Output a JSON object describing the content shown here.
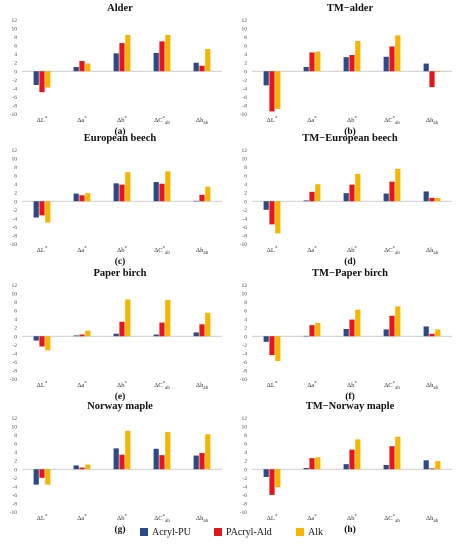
{
  "series_colors": [
    "#2e4a86",
    "#e8141c",
    "#f7b500"
  ],
  "legend": {
    "items": [
      {
        "name": "Acryl-PU",
        "color": "#2e4a86"
      },
      {
        "name": "PAcryl-Ald",
        "color": "#e8141c"
      },
      {
        "name": "Alk",
        "color": "#f7b500"
      }
    ]
  },
  "chart_data": [
    {
      "type": "bar",
      "title": "Alder",
      "letter": "(a)",
      "categories": [
        "ΔL*",
        "Δa*",
        "Δb*",
        "ΔC*ab",
        "Δhab"
      ],
      "series": [
        {
          "name": "Acryl-PU",
          "values": [
            -3.2,
            1.0,
            4.2,
            4.3,
            2.0
          ]
        },
        {
          "name": "PAcryl-Ald",
          "values": [
            -4.9,
            2.4,
            6.6,
            7.0,
            1.3
          ]
        },
        {
          "name": "Alk",
          "values": [
            -3.8,
            1.8,
            8.5,
            8.5,
            5.2
          ]
        }
      ],
      "yticks": [
        "12",
        "10",
        "8",
        "6",
        "4",
        "2",
        "0",
        "-2",
        "-4",
        "-6",
        "-8",
        "-10"
      ],
      "ylim": [
        -10,
        12
      ]
    },
    {
      "type": "bar",
      "title": "TM−alder",
      "letter": "(b)",
      "categories": [
        "ΔL*",
        "Δa*",
        "Δb*",
        "ΔC*ab",
        "Δhab"
      ],
      "series": [
        {
          "name": "Acryl-PU",
          "values": [
            -3.3,
            1.0,
            3.3,
            3.4,
            1.8
          ]
        },
        {
          "name": "PAcryl-Ald",
          "values": [
            -9.4,
            4.4,
            3.8,
            5.8,
            -3.7
          ]
        },
        {
          "name": "Alk",
          "values": [
            -8.8,
            4.6,
            7.1,
            8.4,
            -0.2
          ]
        }
      ],
      "yticks": [
        "12",
        "10",
        "8",
        "6",
        "4",
        "2",
        "0",
        "-2",
        "-4",
        "-6",
        "-8",
        "-10"
      ],
      "ylim": [
        -10,
        12
      ]
    },
    {
      "type": "bar",
      "title": "European beech",
      "letter": "(c)",
      "categories": [
        "ΔL*",
        "Δa*",
        "Δb*",
        "ΔC*ab",
        "Δhab"
      ],
      "series": [
        {
          "name": "Acryl-PU",
          "values": [
            -3.8,
            1.8,
            4.2,
            4.5,
            0.1
          ]
        },
        {
          "name": "PAcryl-Ald",
          "values": [
            -3.3,
            1.4,
            3.9,
            4.1,
            1.5
          ]
        },
        {
          "name": "Alk",
          "values": [
            -5.0,
            1.9,
            6.8,
            7.0,
            3.4
          ]
        }
      ],
      "yticks": [
        "12",
        "10",
        "8",
        "6",
        "4",
        "2",
        "0",
        "-2",
        "-4",
        "-6",
        "-8",
        "-10"
      ],
      "ylim": [
        -10,
        12
      ]
    },
    {
      "type": "bar",
      "title": "TM−European beech",
      "letter": "(d)",
      "categories": [
        "ΔL*",
        "Δa*",
        "Δb*",
        "ΔC*ab",
        "Δhab"
      ],
      "series": [
        {
          "name": "Acryl-PU",
          "values": [
            -2.0,
            0.2,
            1.9,
            1.8,
            2.3
          ]
        },
        {
          "name": "PAcryl-Ald",
          "values": [
            -5.4,
            2.2,
            3.9,
            4.6,
            0.8
          ]
        },
        {
          "name": "Alk",
          "values": [
            -7.5,
            4.0,
            6.4,
            7.6,
            0.8
          ]
        }
      ],
      "yticks": [
        "12",
        "10",
        "8",
        "6",
        "4",
        "2",
        "0",
        "-2",
        "-4",
        "-6",
        "-8",
        "-10"
      ],
      "ylim": [
        -10,
        12
      ]
    },
    {
      "type": "bar",
      "title": "Paper birch",
      "letter": "(e)",
      "categories": [
        "ΔL*",
        "Δa*",
        "Δb*",
        "ΔC*ab",
        "Δhab"
      ],
      "series": [
        {
          "name": "Acryl-PU",
          "values": [
            -1.0,
            0.2,
            0.6,
            0.4,
            0.9
          ]
        },
        {
          "name": "PAcryl-Ald",
          "values": [
            -2.4,
            0.4,
            3.4,
            3.2,
            2.8
          ]
        },
        {
          "name": "Alk",
          "values": [
            -3.3,
            1.3,
            8.6,
            8.5,
            5.5
          ]
        }
      ],
      "yticks": [
        "12",
        "10",
        "8",
        "6",
        "4",
        "2",
        "0",
        "-2",
        "-4",
        "-6",
        "-8",
        "-10"
      ],
      "ylim": [
        -10,
        12
      ]
    },
    {
      "type": "bar",
      "title": "TM−Paper birch",
      "letter": "(f)",
      "categories": [
        "ΔL*",
        "Δa*",
        "Δb*",
        "ΔC*ab",
        "Δhab"
      ],
      "series": [
        {
          "name": "Acryl-PU",
          "values": [
            -1.3,
            0.1,
            1.7,
            1.6,
            2.3
          ]
        },
        {
          "name": "PAcryl-Ald",
          "values": [
            -4.4,
            2.6,
            3.9,
            4.8,
            0.6
          ]
        },
        {
          "name": "Alk",
          "values": [
            -5.8,
            3.1,
            6.2,
            7.0,
            1.6
          ]
        }
      ],
      "yticks": [
        "12",
        "10",
        "8",
        "6",
        "4",
        "2",
        "0",
        "-2",
        "-4",
        "-6",
        "-8",
        "-10"
      ],
      "ylim": [
        -10,
        12
      ]
    },
    {
      "type": "bar",
      "title": "Norway maple",
      "letter": "(g)",
      "categories": [
        "ΔL*",
        "Δa*",
        "Δb*",
        "ΔC*ab",
        "Δhab"
      ],
      "series": [
        {
          "name": "Acryl-PU",
          "values": [
            -3.6,
            0.9,
            4.9,
            4.8,
            3.2
          ]
        },
        {
          "name": "PAcryl-Ald",
          "values": [
            -2.0,
            0.4,
            3.4,
            3.3,
            3.8
          ]
        },
        {
          "name": "Alk",
          "values": [
            -3.6,
            1.1,
            9.0,
            8.7,
            8.2
          ]
        }
      ],
      "yticks": [
        "12",
        "10",
        "8",
        "6",
        "4",
        "2",
        "0",
        "-2",
        "-4",
        "-6",
        "-8",
        "-10"
      ],
      "ylim": [
        -10,
        12
      ]
    },
    {
      "type": "bar",
      "title": "TM−Norway maple",
      "letter": "(h)",
      "categories": [
        "ΔL*",
        "Δa*",
        "Δb*",
        "ΔC*ab",
        "Δhab"
      ],
      "series": [
        {
          "name": "Acryl-PU",
          "values": [
            -1.8,
            0.3,
            1.2,
            1.0,
            2.1
          ]
        },
        {
          "name": "PAcryl-Ald",
          "values": [
            -6.0,
            2.6,
            4.6,
            5.4,
            0.2
          ]
        },
        {
          "name": "Alk",
          "values": [
            -4.2,
            2.8,
            7.0,
            7.6,
            1.9
          ]
        }
      ],
      "yticks": [
        "12",
        "10",
        "8",
        "6",
        "4",
        "2",
        "0",
        "-2",
        "-4",
        "-6",
        "-8",
        "-10"
      ],
      "ylim": [
        -10,
        12
      ]
    }
  ]
}
